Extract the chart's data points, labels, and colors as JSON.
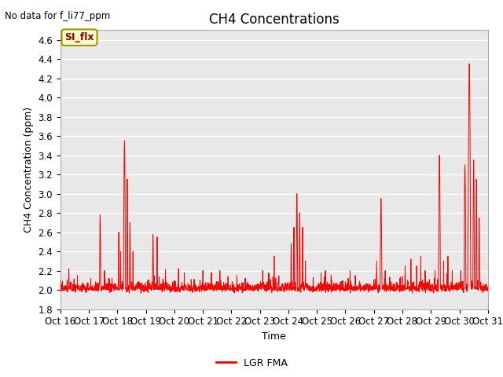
{
  "title": "CH4 Concentrations",
  "ylabel": "CH4 Concentration (ppm)",
  "xlabel": "Time",
  "text_top_left": "No data for f_li77_ppm",
  "ylim": [
    1.8,
    4.7
  ],
  "yticks": [
    1.8,
    2.0,
    2.2,
    2.4,
    2.6,
    2.8,
    3.0,
    3.2,
    3.4,
    3.6,
    3.8,
    4.0,
    4.2,
    4.4,
    4.6
  ],
  "xtick_labels": [
    "Oct 16",
    "Oct 17",
    "Oct 18",
    "Oct 19",
    "Oct 20",
    "Oct 21",
    "Oct 22",
    "Oct 23",
    "Oct 24",
    "Oct 25",
    "Oct 26",
    "Oct 27",
    "Oct 28",
    "Oct 29",
    "Oct 30",
    "Oct 31"
  ],
  "line_color": "#ff0000",
  "line_label": "LGR FMA",
  "legend_label_si": "SI_flx",
  "legend_si_bg": "#ffffcc",
  "legend_si_border": "#999900",
  "plot_bg_color": "#e8e8e8",
  "grid_color": "#ffffff",
  "title_fontsize": 12,
  "axis_fontsize": 9,
  "tick_fontsize": 8.5
}
